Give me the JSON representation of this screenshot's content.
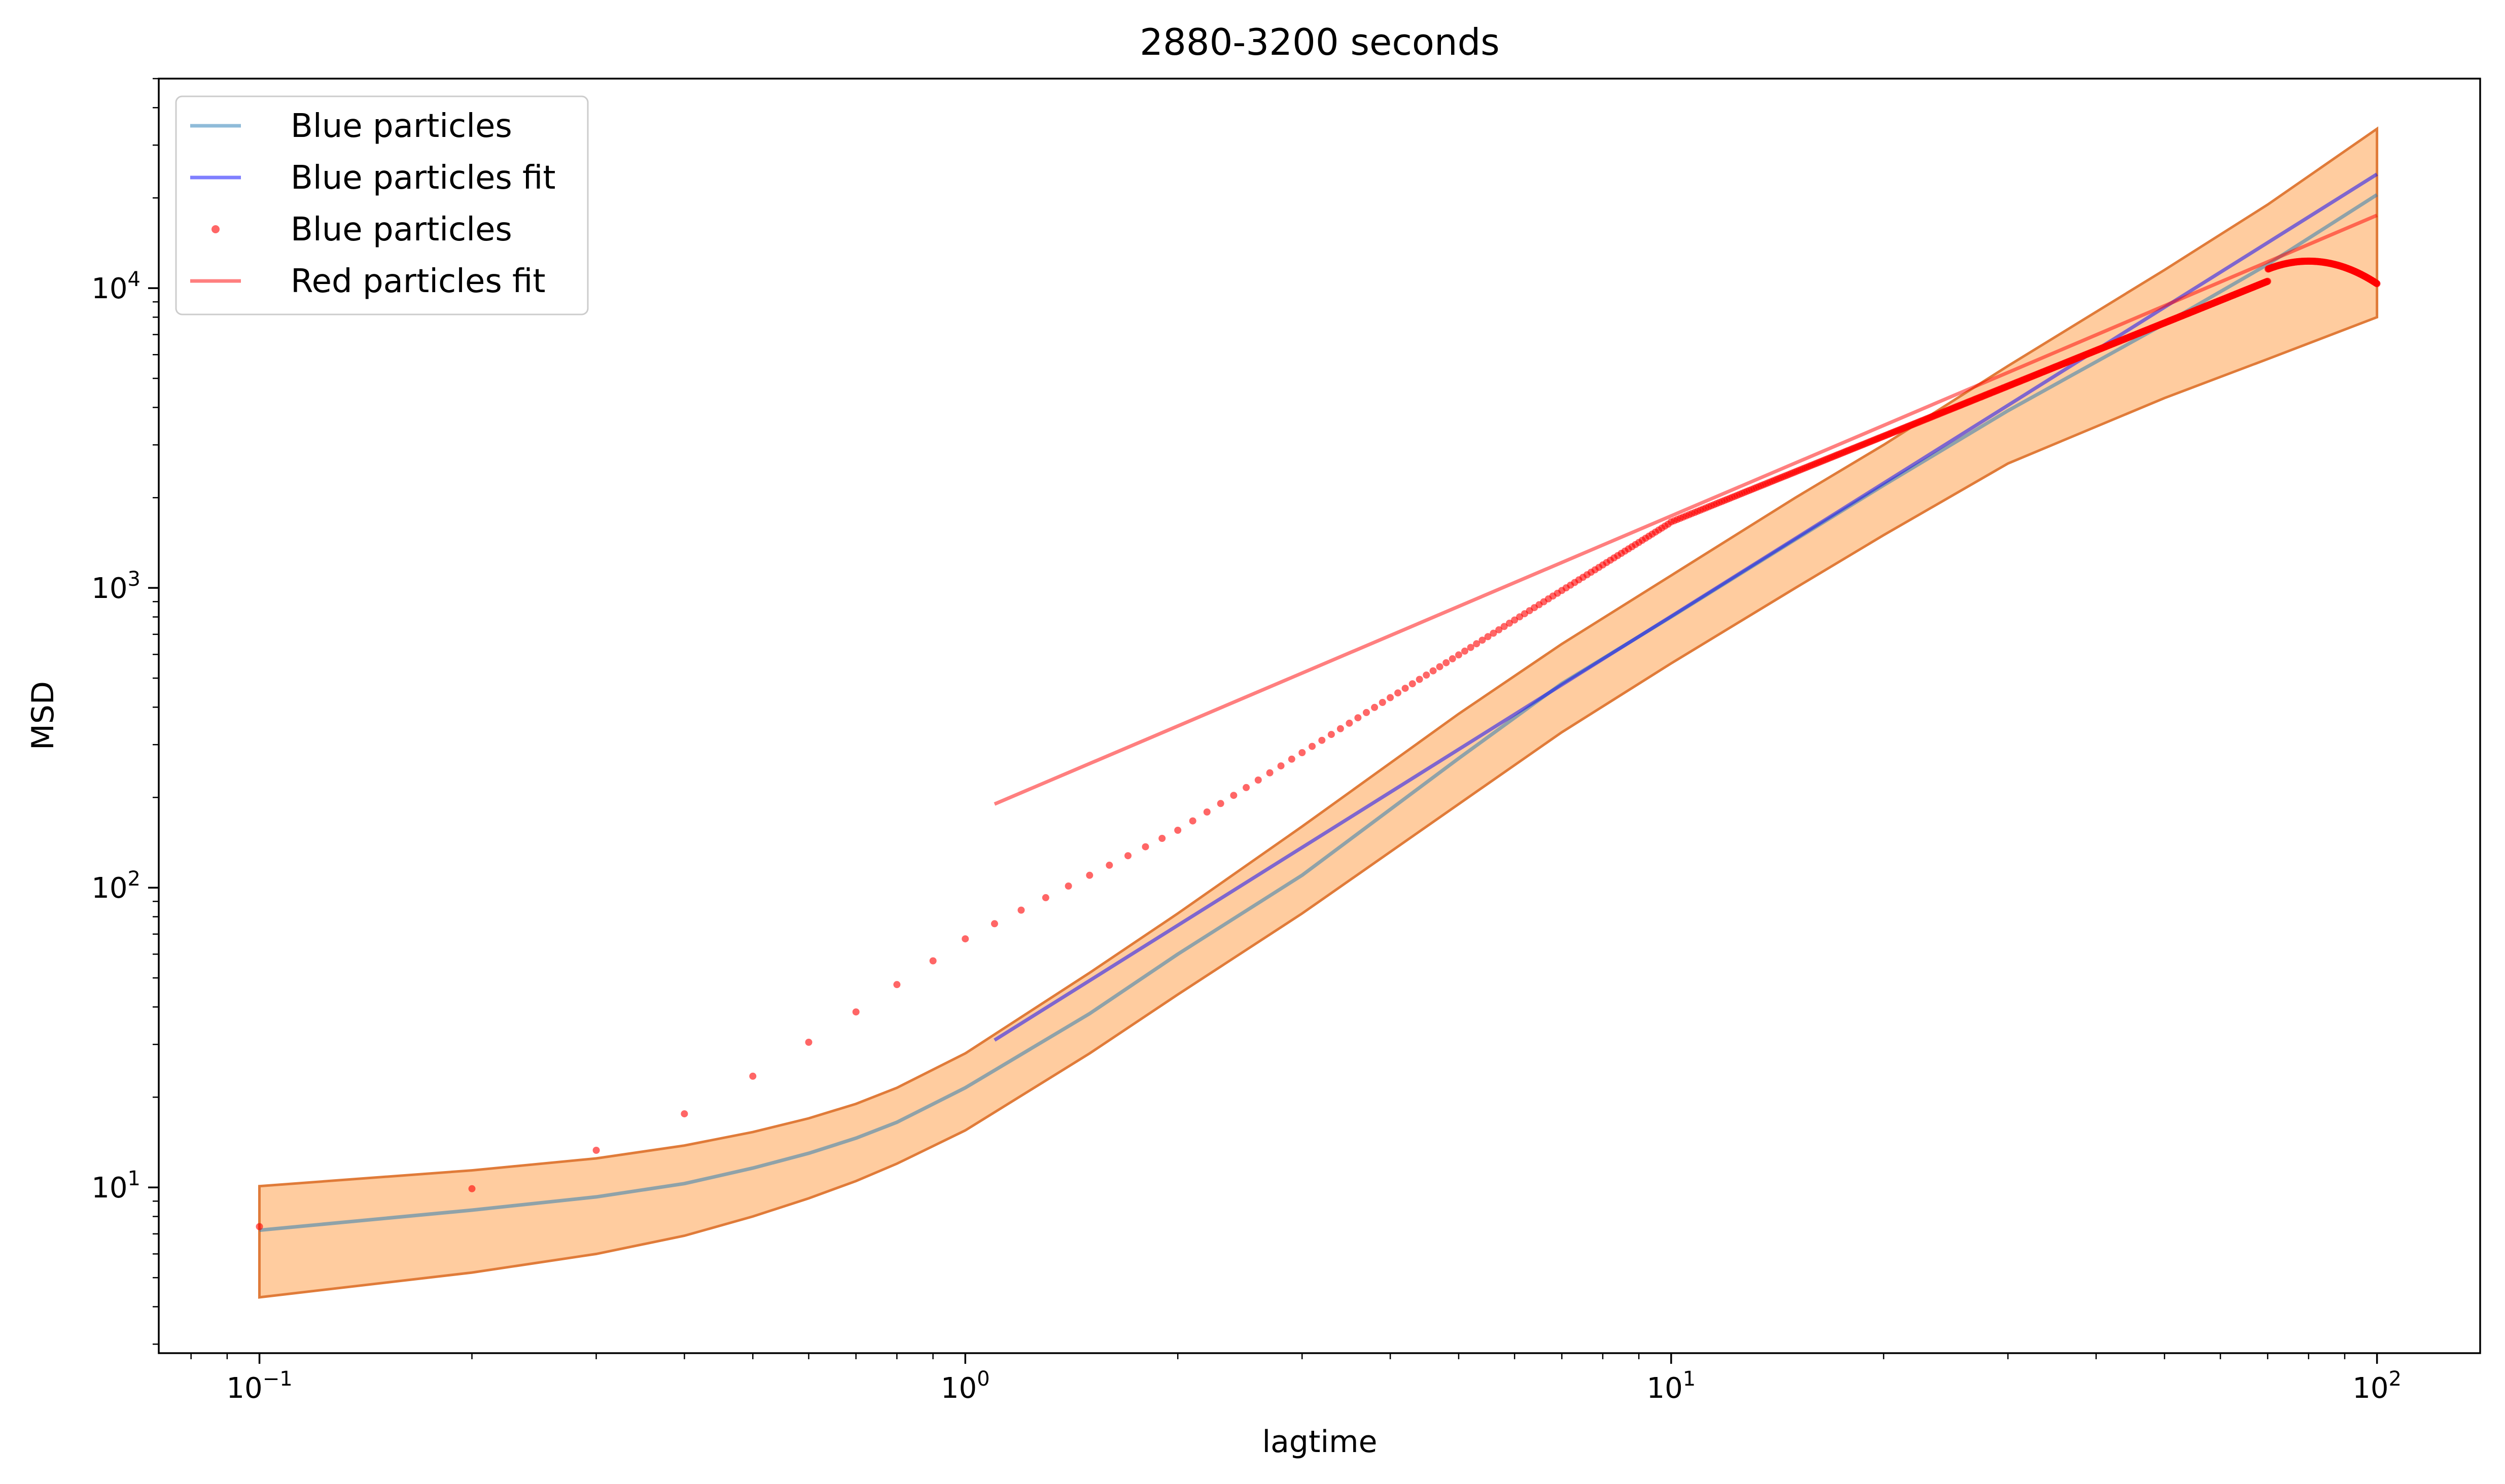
{
  "chart_data": {
    "type": "line",
    "title": "2880-3200 seconds",
    "xlabel": "lagtime",
    "ylabel": "MSD",
    "xscale": "log",
    "yscale": "log",
    "xlim": [
      0.072,
      140
    ],
    "ylim": [
      2.8,
      50000
    ],
    "x_ticks": [
      {
        "base": "10",
        "exp": "−1",
        "value": 0.1
      },
      {
        "base": "10",
        "exp": "0",
        "value": 1
      },
      {
        "base": "10",
        "exp": "1",
        "value": 10
      },
      {
        "base": "10",
        "exp": "2",
        "value": 100
      }
    ],
    "y_ticks": [
      {
        "base": "10",
        "exp": "1",
        "value": 10
      },
      {
        "base": "10",
        "exp": "2",
        "value": 100
      },
      {
        "base": "10",
        "exp": "3",
        "value": 1000
      },
      {
        "base": "10",
        "exp": "4",
        "value": 10000
      }
    ],
    "grid": false,
    "legend_position": "top-left",
    "legend": [
      {
        "label": "Blue particles",
        "style": "line",
        "color": "#1f77b4",
        "opacity": 0.5
      },
      {
        "label": "Blue particles fit",
        "style": "line",
        "color": "#0000ff",
        "opacity": 0.5
      },
      {
        "label": "Blue particles",
        "style": "dot",
        "color": "#ff0000",
        "opacity": 0.6
      },
      {
        "label": "Red particles fit",
        "style": "line",
        "color": "#ff0000",
        "opacity": 0.5
      }
    ],
    "band": {
      "color": "#ff7f0e",
      "fill_opacity": 0.4,
      "edge_color": "#e07b39",
      "x": [
        0.1,
        0.2,
        0.3,
        0.4,
        0.5,
        0.6,
        0.7,
        0.8,
        1.0,
        1.5,
        2.0,
        3.0,
        5.0,
        7.0,
        10.0,
        15.0,
        20.0,
        30.0,
        50.0,
        70.0,
        100.0
      ],
      "lower": [
        4.3,
        5.2,
        6.0,
        6.9,
        8.0,
        9.2,
        10.5,
        12.0,
        15.5,
        28.0,
        44.0,
        82.0,
        190.0,
        330.0,
        560.0,
        1000.0,
        1500.0,
        2600.0,
        4300.0,
        5800.0,
        8000.0
      ],
      "upper": [
        10.1,
        11.4,
        12.5,
        13.8,
        15.3,
        17.0,
        19.0,
        21.5,
        28.0,
        52.0,
        82.0,
        160.0,
        380.0,
        650.0,
        1100.0,
        2000.0,
        3000.0,
        5500.0,
        11500.0,
        19000.0,
        34000.0
      ]
    },
    "series": [
      {
        "name": "Blue particles",
        "kind": "line",
        "color": "#1f77b4",
        "opacity": 0.5,
        "x": [
          0.1,
          0.2,
          0.3,
          0.4,
          0.5,
          0.6,
          0.7,
          0.8,
          1.0,
          1.5,
          2.0,
          3.0,
          5.0,
          7.0,
          10.0,
          15.0,
          20.0,
          30.0,
          50.0,
          70.0,
          100.0
        ],
        "y": [
          7.2,
          8.4,
          9.3,
          10.3,
          11.6,
          13.0,
          14.6,
          16.5,
          21.5,
          38.0,
          60.0,
          110.0,
          270.0,
          480.0,
          800.0,
          1450.0,
          2200.0,
          3900.0,
          7600.0,
          12000.0,
          20500.0
        ]
      },
      {
        "name": "Blue particles fit",
        "kind": "line",
        "color": "#0000ff",
        "opacity": 0.5,
        "x": [
          1.1,
          100.0
        ],
        "y": [
          31.0,
          24000.0
        ]
      },
      {
        "name": "Blue particles",
        "kind": "scatter",
        "color": "#ff0000",
        "opacity": 0.6,
        "law": {
          "x_start": 0.1,
          "x_step": 0.1,
          "x_end": 100.0,
          "y_near_origin": [
            7.4,
            9.9,
            13.3,
            17.6,
            23.5,
            30.5,
            38.5,
            47.5,
            57.0,
            67.5
          ]
        }
      },
      {
        "name": "Red particles fit",
        "kind": "line",
        "color": "#ff0000",
        "opacity": 0.5,
        "x": [
          1.1,
          100.0
        ],
        "y": [
          190.0,
          17500.0
        ]
      }
    ]
  }
}
